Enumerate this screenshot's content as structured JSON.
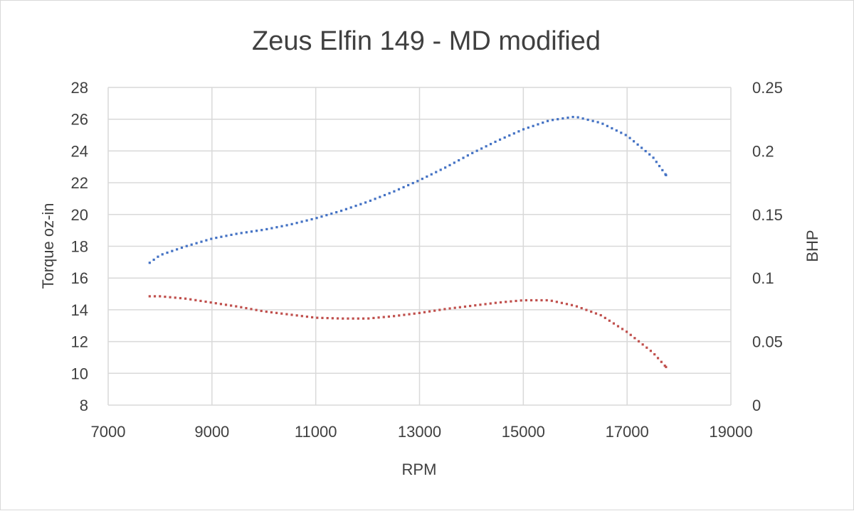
{
  "chart_data": {
    "type": "scatter",
    "title": "Zeus Elfin 149 - MD  modified",
    "xlabel": "RPM",
    "ylabel_left": "Torque oz-in",
    "ylabel_right": "BHP",
    "xlim": [
      7000,
      19000
    ],
    "ylim_left": [
      8,
      28
    ],
    "ylim_right": [
      0,
      0.25
    ],
    "x_ticks": [
      "7000",
      "9000",
      "11000",
      "13000",
      "15000",
      "17000",
      "19000"
    ],
    "y_left_ticks": [
      "8",
      "10",
      "12",
      "14",
      "16",
      "18",
      "20",
      "22",
      "24",
      "26",
      "28"
    ],
    "y_right_ticks": [
      "0",
      "0.05",
      "0.1",
      "0.15",
      "0.2",
      "0.25"
    ],
    "grid": true,
    "legend": "none",
    "series": [
      {
        "axis": "right",
        "color": "#4472c4",
        "marker": "dotted",
        "x": [
          7800,
          8000,
          8500,
          9000,
          9500,
          10000,
          10500,
          11000,
          11500,
          12000,
          12500,
          13000,
          13500,
          14000,
          14500,
          15000,
          15500,
          16000,
          16500,
          17000,
          17500,
          17750
        ],
        "values": [
          0.112,
          0.118,
          0.125,
          0.131,
          0.135,
          0.138,
          0.142,
          0.147,
          0.153,
          0.16,
          0.168,
          0.177,
          0.187,
          0.198,
          0.208,
          0.217,
          0.224,
          0.227,
          0.222,
          0.212,
          0.195,
          0.181
        ]
      },
      {
        "axis": "left",
        "color": "#c0504d",
        "marker": "dotted",
        "x": [
          7800,
          8000,
          8500,
          9000,
          9500,
          10000,
          10500,
          11000,
          11500,
          12000,
          12500,
          13000,
          13500,
          14000,
          14500,
          15000,
          15500,
          16000,
          16500,
          17000,
          17500,
          17750
        ],
        "values": [
          14.85,
          14.85,
          14.7,
          14.45,
          14.2,
          13.9,
          13.7,
          13.5,
          13.45,
          13.45,
          13.6,
          13.8,
          14.05,
          14.25,
          14.45,
          14.6,
          14.6,
          14.25,
          13.65,
          12.6,
          11.3,
          10.4
        ]
      }
    ]
  }
}
